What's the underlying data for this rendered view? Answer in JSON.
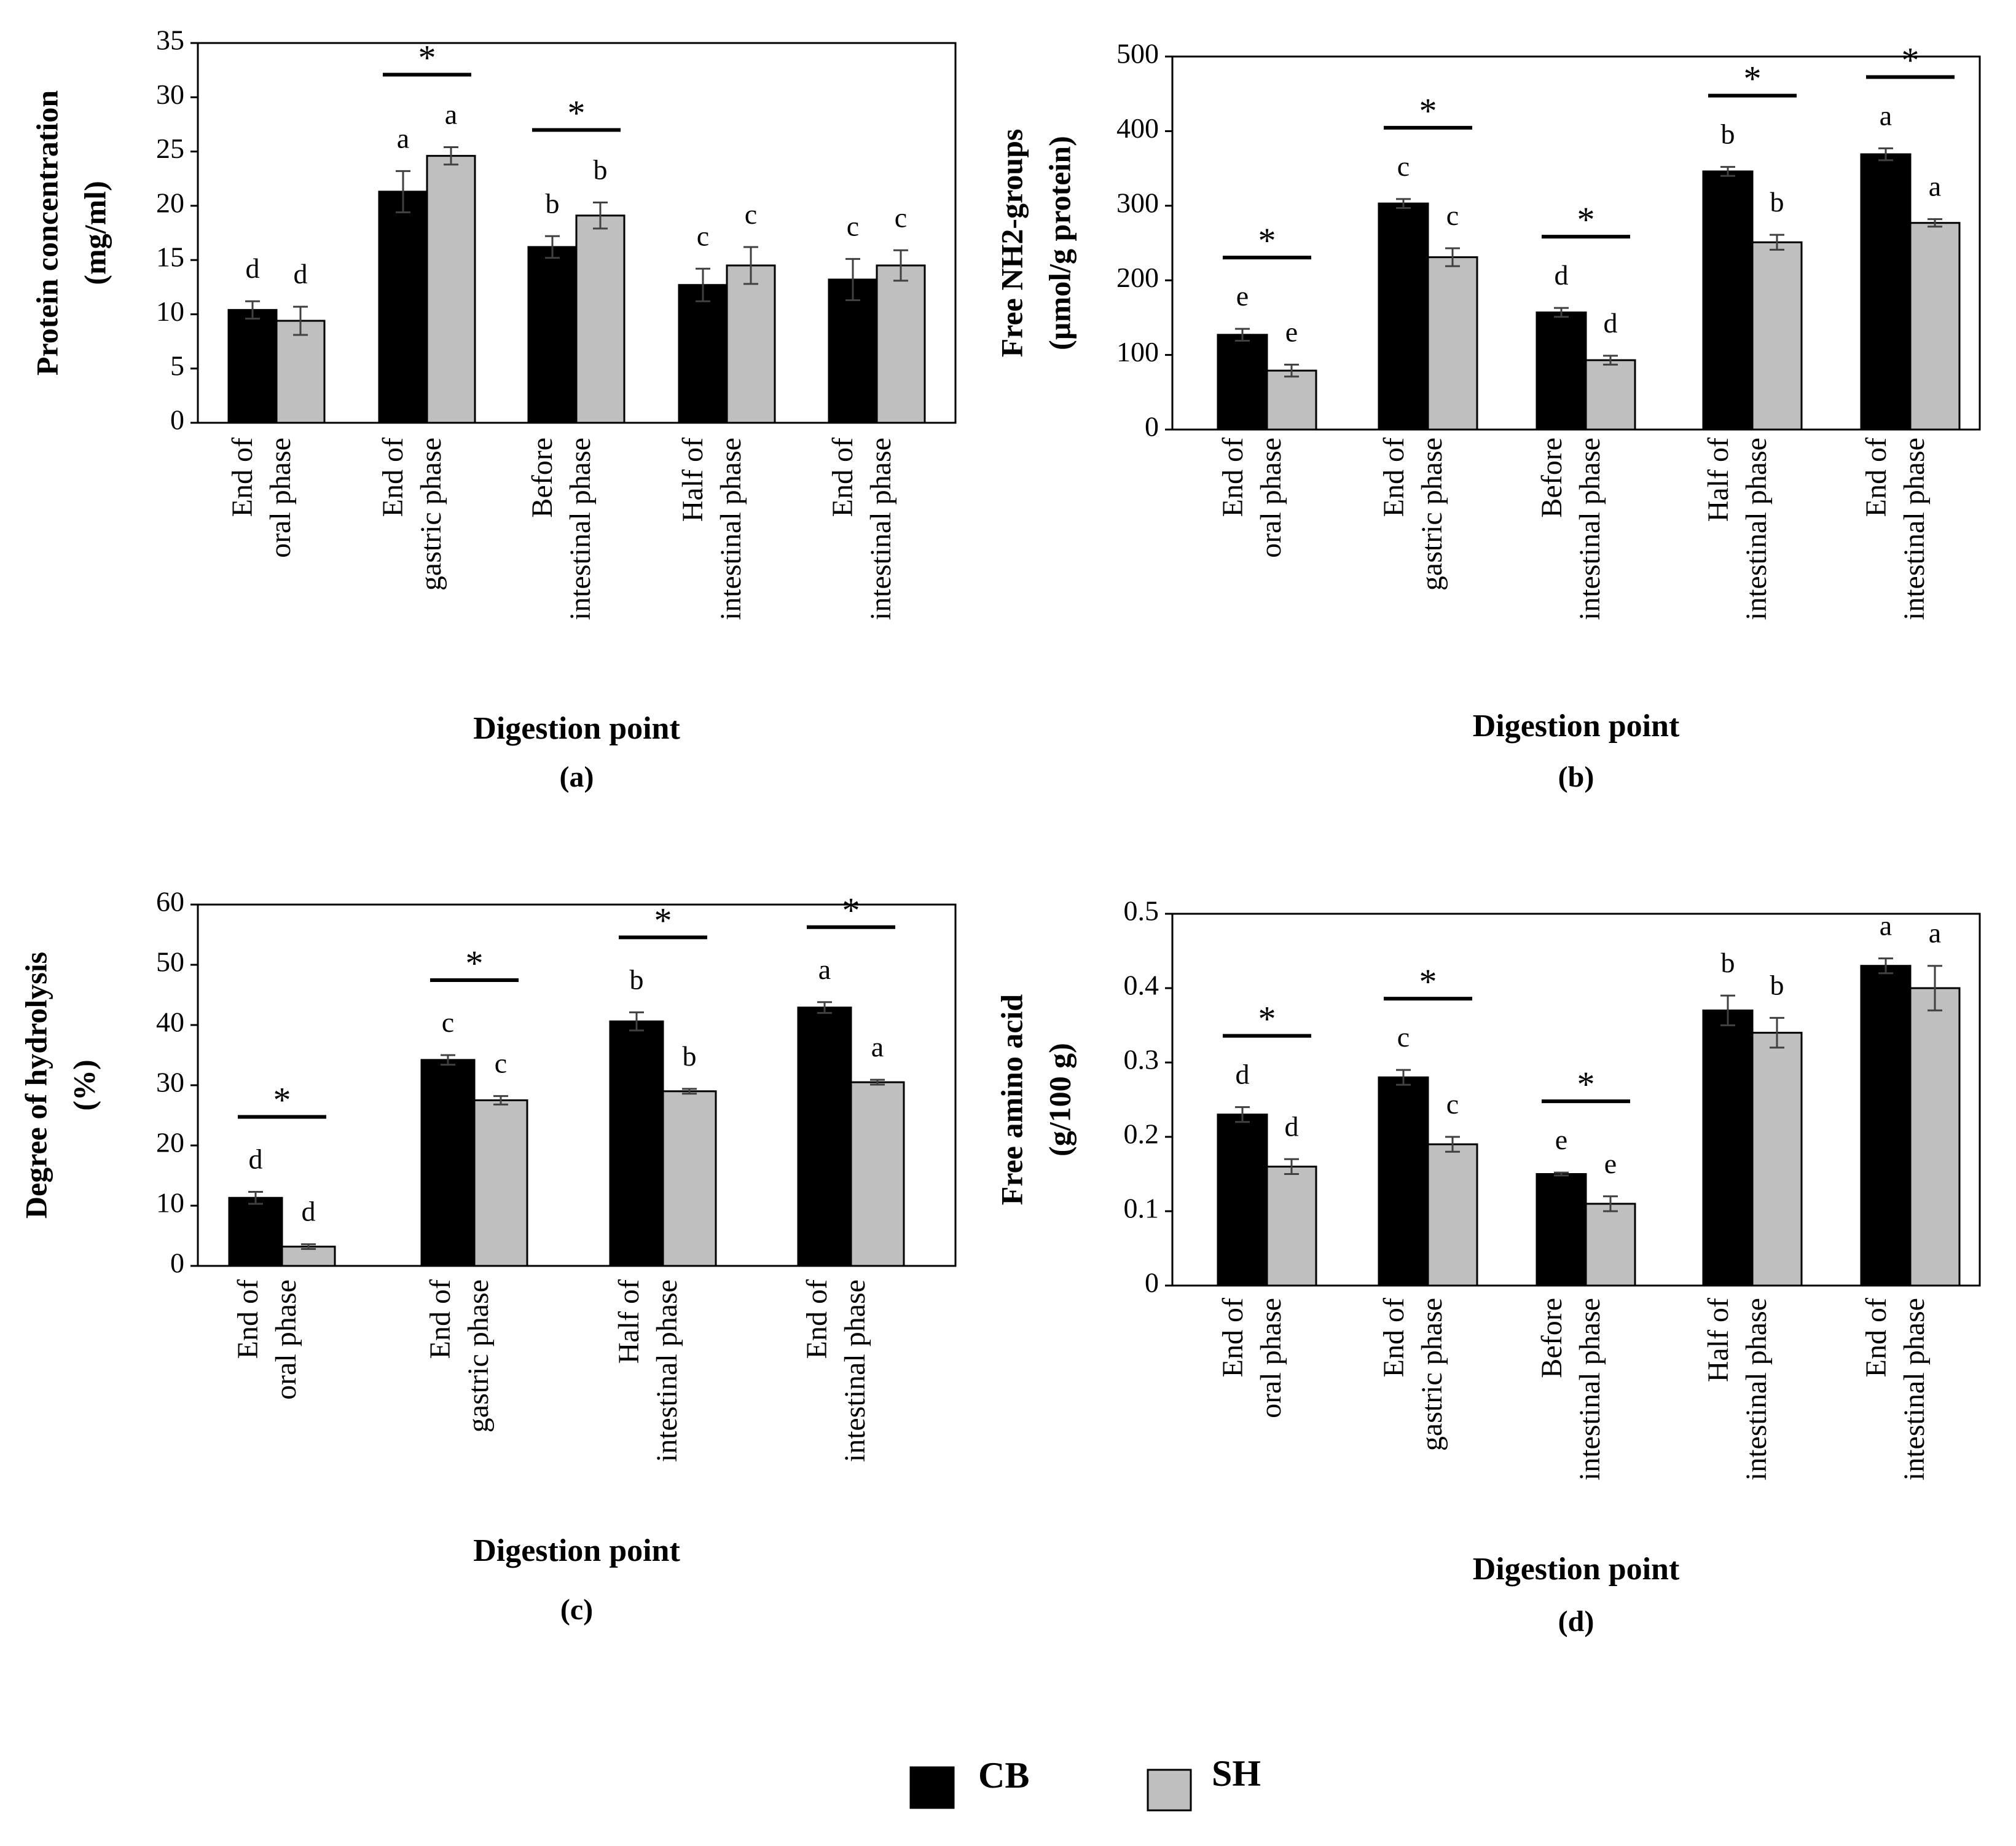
{
  "chart_data": [
    {
      "type": "bar",
      "panel_label": "(a)",
      "ylabel_lines": [
        "Protein concentration",
        "(mg/ml)"
      ],
      "xlabel": "Digestion point",
      "ylim": [
        0,
        35
      ],
      "yticks": [
        0,
        5,
        10,
        15,
        20,
        25,
        30,
        35
      ],
      "categories": [
        [
          "End of",
          "oral phase"
        ],
        [
          "End of",
          "gastric phase"
        ],
        [
          "Before",
          "intestinal phase"
        ],
        [
          "Half of",
          "intestinal phase"
        ],
        [
          "End of",
          "intestinal phase"
        ]
      ],
      "series": [
        {
          "name": "CB",
          "values": [
            10.4,
            21.3,
            16.2,
            12.7,
            13.2
          ],
          "errors": [
            0.8,
            1.9,
            1.0,
            1.5,
            1.9
          ],
          "letters": [
            "d",
            "a",
            "b",
            "c",
            "c"
          ]
        },
        {
          "name": "SH",
          "values": [
            9.4,
            24.6,
            19.1,
            14.5,
            14.5
          ],
          "errors": [
            1.3,
            0.8,
            1.2,
            1.7,
            1.4
          ],
          "letters": [
            "d",
            "a",
            "b",
            "c",
            "c"
          ]
        }
      ],
      "significance": [
        false,
        true,
        true,
        false,
        false
      ],
      "significance_marker": "*"
    },
    {
      "type": "bar",
      "panel_label": "(b)",
      "ylabel_lines": [
        "Free NH2-groups",
        "(µmol/g protein)"
      ],
      "xlabel": "Digestion point",
      "ylim": [
        0,
        500
      ],
      "yticks": [
        0,
        100,
        200,
        300,
        400,
        500
      ],
      "categories": [
        [
          "End of",
          "oral phase"
        ],
        [
          "End of",
          "gastric phase"
        ],
        [
          "Before",
          "intestinal phase"
        ],
        [
          "Half of",
          "intestinal phase"
        ],
        [
          "End of",
          "intestinal phase"
        ]
      ],
      "series": [
        {
          "name": "CB",
          "values": [
            127,
            303,
            157,
            346,
            369
          ],
          "errors": [
            8,
            6,
            6,
            6,
            8
          ],
          "letters": [
            "e",
            "c",
            "d",
            "b",
            "a"
          ]
        },
        {
          "name": "SH",
          "values": [
            79,
            231,
            93,
            251,
            277
          ],
          "errors": [
            8,
            12,
            6,
            10,
            5
          ],
          "letters": [
            "e",
            "c",
            "d",
            "b",
            "a"
          ]
        }
      ],
      "significance": [
        true,
        true,
        true,
        true,
        true
      ],
      "significance_marker": "*"
    },
    {
      "type": "bar",
      "panel_label": "(c)",
      "ylabel_lines": [
        "Degree of hydrolysis",
        "(%)"
      ],
      "xlabel": "Digestion point",
      "ylim": [
        0,
        60
      ],
      "yticks": [
        0,
        10,
        20,
        30,
        40,
        50,
        60
      ],
      "categories": [
        [
          "End of",
          "oral phase"
        ],
        [
          "End of",
          "gastric phase"
        ],
        [
          "Half of",
          "intestinal phase"
        ],
        [
          "End of",
          "intestinal phase"
        ]
      ],
      "series": [
        {
          "name": "CB",
          "values": [
            11.3,
            34.2,
            40.6,
            42.9
          ],
          "errors": [
            1.0,
            0.8,
            1.5,
            0.9
          ],
          "letters": [
            "d",
            "c",
            "b",
            "a"
          ]
        },
        {
          "name": "SH",
          "values": [
            3.2,
            27.5,
            29.0,
            30.5
          ],
          "errors": [
            0.4,
            0.7,
            0.4,
            0.4
          ],
          "letters": [
            "d",
            "c",
            "b",
            "a"
          ]
        }
      ],
      "significance": [
        true,
        true,
        true,
        true
      ],
      "significance_marker": "*"
    },
    {
      "type": "bar",
      "panel_label": "(d)",
      "ylabel_lines": [
        "Free amino acid",
        "(g/100 g)"
      ],
      "xlabel": "Digestion point",
      "ylim": [
        0,
        0.5
      ],
      "yticks": [
        0,
        0.1,
        0.2,
        0.3,
        0.4,
        0.5
      ],
      "categories": [
        [
          "End of",
          "oral phase"
        ],
        [
          "End of",
          "gastric phase"
        ],
        [
          "Before",
          "intestinal phase"
        ],
        [
          "Half of",
          "intestinal phase"
        ],
        [
          "End of",
          "intestinal phase"
        ]
      ],
      "series": [
        {
          "name": "CB",
          "values": [
            0.23,
            0.28,
            0.15,
            0.37,
            0.43
          ],
          "errors": [
            0.01,
            0.01,
            0.002,
            0.02,
            0.01
          ],
          "letters": [
            "d",
            "c",
            "e",
            "b",
            "a"
          ]
        },
        {
          "name": "SH",
          "values": [
            0.16,
            0.19,
            0.11,
            0.34,
            0.4
          ],
          "errors": [
            0.01,
            0.01,
            0.01,
            0.02,
            0.03
          ],
          "letters": [
            "d",
            "c",
            "e",
            "b",
            "a"
          ]
        }
      ],
      "significance": [
        true,
        true,
        true,
        false,
        false
      ],
      "significance_marker": "*"
    }
  ],
  "legend": [
    {
      "name": "CB",
      "color": "#000000"
    },
    {
      "name": "SH",
      "color": "#bfbfbf"
    }
  ],
  "colors": {
    "cb": "#000000",
    "sh": "#bfbfbf",
    "error_bar": "#404040"
  }
}
